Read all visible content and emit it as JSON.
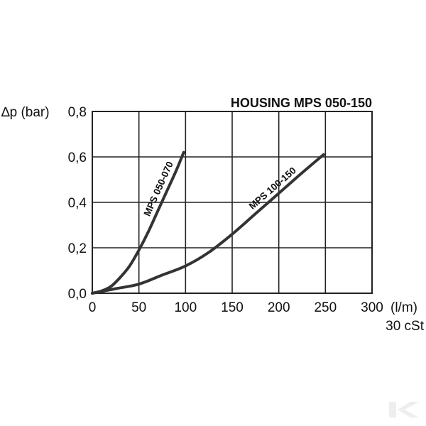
{
  "chart_data": {
    "type": "line",
    "title": "HOUSING MPS 050-150",
    "ylabel": "∆p (bar)",
    "xlabel": "(l/m)",
    "x_note": "30 cSt",
    "xlim": [
      0,
      300
    ],
    "ylim": [
      0,
      0.8
    ],
    "grid": true,
    "x_ticks": [
      0,
      50,
      100,
      150,
      200,
      250,
      300
    ],
    "x_tick_labels": [
      "0",
      "50",
      "100",
      "150",
      "200",
      "250",
      "300"
    ],
    "y_ticks": [
      0,
      0.2,
      0.4,
      0.6,
      0.8
    ],
    "y_tick_labels": [
      "0,0",
      "0,2",
      "0,4",
      "0,6",
      "0,8"
    ],
    "series": [
      {
        "name": "MPS 050-070",
        "color": "#333333",
        "x": [
          0,
          10,
          20,
          30,
          40,
          50,
          60,
          70,
          80,
          90,
          98
        ],
        "y": [
          0,
          0.01,
          0.03,
          0.07,
          0.12,
          0.19,
          0.27,
          0.36,
          0.45,
          0.54,
          0.62
        ]
      },
      {
        "name": "MPS 100-150",
        "color": "#333333",
        "x": [
          0,
          25,
          50,
          75,
          100,
          125,
          150,
          175,
          200,
          225,
          248
        ],
        "y": [
          0,
          0.02,
          0.04,
          0.08,
          0.12,
          0.18,
          0.26,
          0.35,
          0.44,
          0.53,
          0.61
        ]
      }
    ]
  }
}
